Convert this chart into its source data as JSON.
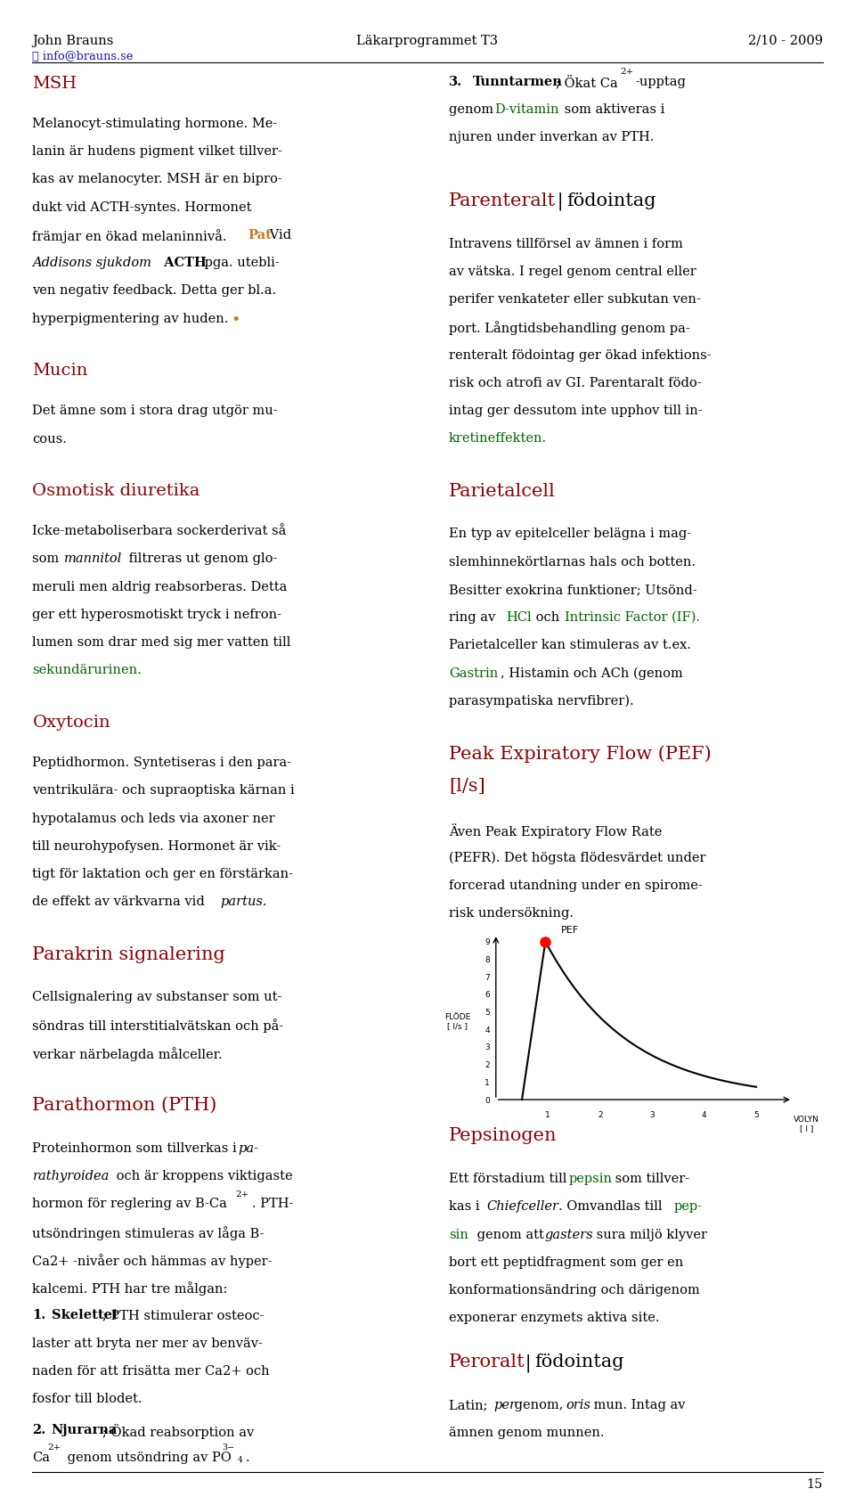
{
  "page_width": 9.6,
  "page_height": 16.9,
  "bg_color": "#ffffff",
  "header_left": "John Brauns",
  "header_left_sub": "ⓘ info@brauns.se",
  "header_center": "Läkarprogrammet T3",
  "header_right": "2/10 - 2009",
  "footer_page": "15",
  "red_color": "#8B0000",
  "orange_color": "#CC7722",
  "green_color": "#006400",
  "blue_link": "#1a0dab",
  "fs_body": 10.5,
  "fs_heading": 14,
  "fs_heading_large": 15,
  "fs_header": 10.5,
  "lh": 0.0185,
  "lm": 0.038,
  "rm": 0.962,
  "col_div": 0.505
}
